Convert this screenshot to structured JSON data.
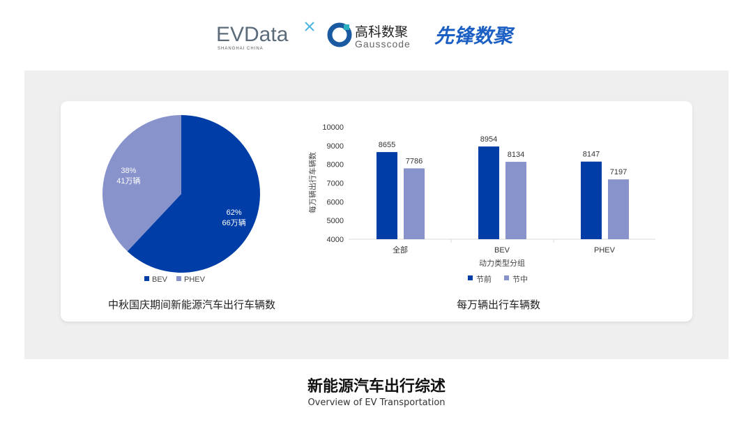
{
  "logos": {
    "evdata": "EVData",
    "evdata_sub": "SHANGHAI CHINA",
    "gauss_cn": "高科数聚",
    "gauss_en": "Gausscode",
    "xianfeng": "先锋数聚"
  },
  "colors": {
    "dark": "#003da6",
    "light": "#8893cc"
  },
  "chart_data": [
    {
      "type": "pie",
      "title": "中秋国庆期间新能源汽车出行车辆数",
      "slices": [
        {
          "name": "BEV",
          "percent": 62,
          "label": "62%",
          "value_label": "66万辆"
        },
        {
          "name": "PHEV",
          "percent": 38,
          "label": "38%",
          "value_label": "41万辆"
        }
      ],
      "legend": "bottom"
    },
    {
      "type": "bar",
      "title": "每万辆出行车辆数",
      "xlabel": "动力类型分组",
      "ylabel": "每万辆出行车辆数",
      "categories": [
        "全部",
        "BEV",
        "PHEV"
      ],
      "ylim": [
        4000,
        10000
      ],
      "yticks": [
        4000,
        5000,
        6000,
        7000,
        8000,
        9000,
        10000
      ],
      "series": [
        {
          "name": "节前",
          "values": [
            8655,
            8954,
            8147
          ]
        },
        {
          "name": "节中",
          "values": [
            7786,
            8134,
            7197
          ]
        }
      ],
      "legend": "bottom",
      "grid": false
    }
  ],
  "footer": {
    "title": "新能源汽车出行综述",
    "subtitle": "Overview of EV Transportation"
  }
}
